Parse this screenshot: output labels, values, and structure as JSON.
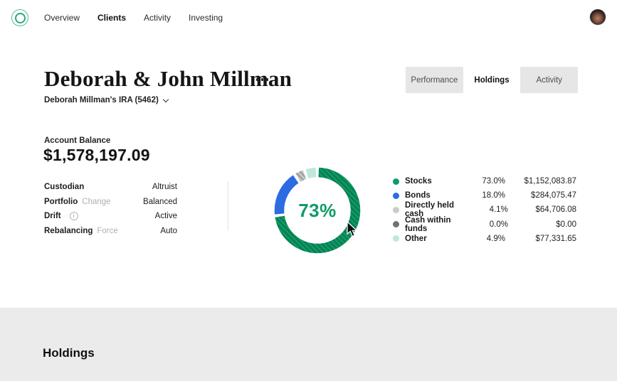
{
  "nav": {
    "items": [
      {
        "label": "Overview",
        "active": false
      },
      {
        "label": "Clients",
        "active": true
      },
      {
        "label": "Activity",
        "active": false
      },
      {
        "label": "Investing",
        "active": false
      }
    ]
  },
  "header": {
    "title": "Deborah & John Millman",
    "account_selector": "Deborah Millman's IRA (5462)"
  },
  "tabs": [
    {
      "label": "Performance",
      "active": false
    },
    {
      "label": "Holdings",
      "active": true
    },
    {
      "label": "Activity",
      "active": false
    }
  ],
  "balance": {
    "label": "Account Balance",
    "value": "$1,578,197.09"
  },
  "details": {
    "rows": [
      {
        "label": "Custodian",
        "action": "",
        "value": "Altruist"
      },
      {
        "label": "Portfolio",
        "action": "Change",
        "value": "Balanced"
      },
      {
        "label": "Drift",
        "action": "",
        "value": "Active",
        "info_icon": true
      },
      {
        "label": "Rebalancing",
        "action": "Force",
        "value": "Auto"
      }
    ]
  },
  "chart_data": {
    "type": "pie",
    "subtype": "donut",
    "center_label": "73%",
    "categories": [
      "Stocks",
      "Bonds",
      "Directly held cash",
      "Cash within funds",
      "Other"
    ],
    "values": [
      73.0,
      18.0,
      4.1,
      0.0,
      4.9
    ],
    "percent_labels": [
      "73.0%",
      "18.0%",
      "4.1%",
      "0.0%",
      "4.9%"
    ],
    "amounts": [
      "$1,152,083.87",
      "$284,075.47",
      "$64,706.08",
      "$0.00",
      "$77,331.65"
    ],
    "colors": [
      "#0D9C66",
      "#2D6BE3",
      "#C9CCCB",
      "#6E7271",
      "#BEE8DA"
    ],
    "hatched": [
      true,
      false,
      true,
      false,
      false
    ],
    "legend_position": "right",
    "start_angle_deg": 0,
    "direction": "clockwise"
  },
  "sections": {
    "holdings_title": "Holdings"
  },
  "colors": {
    "accent_green": "#0D9C66",
    "accent_blue": "#2D6BE3",
    "panel_bg": "#EBEBEB",
    "tab_inactive_bg": "#E6E6E6"
  }
}
